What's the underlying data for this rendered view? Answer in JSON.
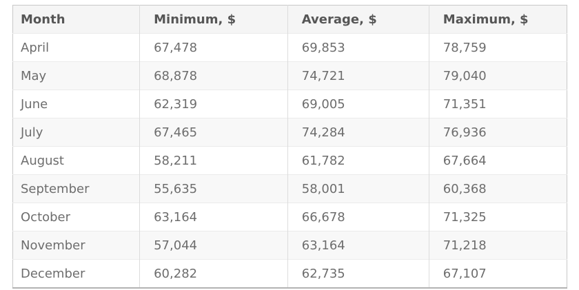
{
  "table": {
    "columns": [
      "Month",
      "Minimum, $",
      "Average, $",
      "Maximum, $"
    ],
    "rows": [
      [
        "April",
        "67,478",
        "69,853",
        "78,759"
      ],
      [
        "May",
        "68,878",
        "74,721",
        "79,040"
      ],
      [
        "June",
        "62,319",
        "69,005",
        "71,351"
      ],
      [
        "July",
        "67,465",
        "74,284",
        "76,936"
      ],
      [
        "August",
        "58,211",
        "61,782",
        "67,664"
      ],
      [
        "September",
        "55,635",
        "58,001",
        "60,368"
      ],
      [
        "October",
        "63,164",
        "66,678",
        "71,325"
      ],
      [
        "November",
        "57,044",
        "63,164",
        "71,218"
      ],
      [
        "December",
        "60,282",
        "62,735",
        "67,107"
      ]
    ]
  },
  "chart_data": {
    "type": "table",
    "title": "",
    "columns": [
      "Month",
      "Minimum, $",
      "Average, $",
      "Maximum, $"
    ],
    "rows": [
      {
        "month": "April",
        "minimum": 67478,
        "average": 69853,
        "maximum": 78759
      },
      {
        "month": "May",
        "minimum": 68878,
        "average": 74721,
        "maximum": 79040
      },
      {
        "month": "June",
        "minimum": 62319,
        "average": 69005,
        "maximum": 71351
      },
      {
        "month": "July",
        "minimum": 67465,
        "average": 74284,
        "maximum": 76936
      },
      {
        "month": "August",
        "minimum": 58211,
        "average": 61782,
        "maximum": 67664
      },
      {
        "month": "September",
        "minimum": 55635,
        "average": 58001,
        "maximum": 60368
      },
      {
        "month": "October",
        "minimum": 63164,
        "average": 66678,
        "maximum": 71325
      },
      {
        "month": "November",
        "minimum": 57044,
        "average": 63164,
        "maximum": 71218
      },
      {
        "month": "December",
        "minimum": 60282,
        "average": 62735,
        "maximum": 67107
      }
    ]
  },
  "colors": {
    "header_background": "#f5f5f5",
    "row_alt_background": "#f8f8f8",
    "header_text": "#565656",
    "cell_text": "#6d6d6d",
    "border_outer": "#c8c8c8",
    "border_bottom": "#b2b2b2",
    "border_column": "#dcdcdc",
    "border_row": "#ebebeb"
  }
}
